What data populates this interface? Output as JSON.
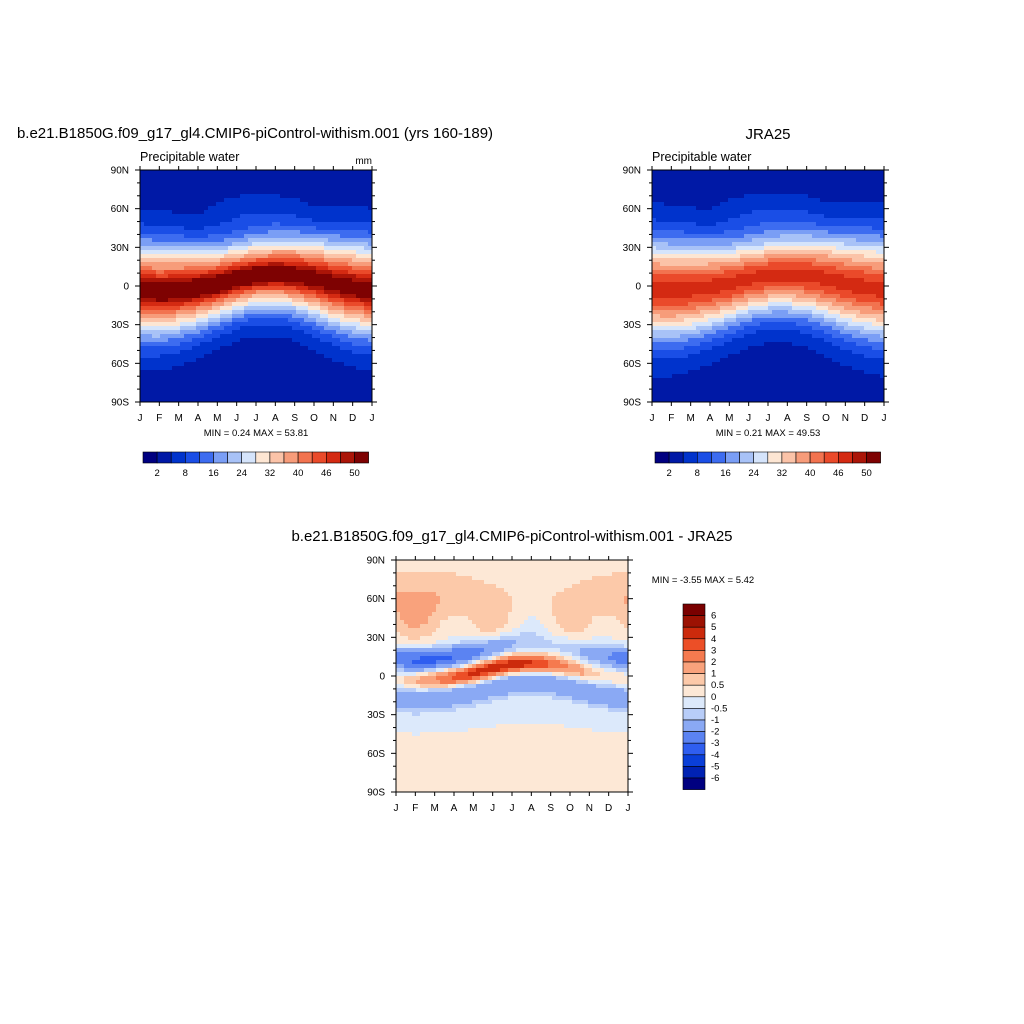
{
  "chart_data": [
    {
      "type": "heatmap",
      "title": "b.e21.B1850G.f09_g17_gl4.CMIP6-piControl-withism.001 (yrs 160-189)",
      "subtitle_left": "Precipitable water",
      "subtitle_right": "mm",
      "x_tick_labels": [
        "J",
        "F",
        "M",
        "A",
        "M",
        "J",
        "J",
        "A",
        "S",
        "O",
        "N",
        "D",
        "J"
      ],
      "y_tick_labels": [
        "90N",
        "60N",
        "30N",
        "0",
        "30S",
        "60S",
        "90S"
      ],
      "ylim": [
        -90,
        90
      ],
      "min_max_text": "MIN =   0.24 MAX =  53.81",
      "min": 0.24,
      "max": 53.81,
      "itcz_peak_lat": {
        "months": [
          "J",
          "F",
          "M",
          "A",
          "M",
          "J",
          "J",
          "A",
          "S",
          "O",
          "N",
          "D",
          "J"
        ],
        "lat": [
          -3,
          -4,
          -3,
          -1,
          2,
          6,
          9,
          10,
          9,
          6,
          2,
          -1,
          -3
        ]
      },
      "colorbar": {
        "labels": [
          "2",
          "8",
          "16",
          "24",
          "32",
          "40",
          "46",
          "50"
        ]
      }
    },
    {
      "type": "heatmap",
      "title": "JRA25",
      "subtitle_left": "Precipitable water",
      "x_tick_labels": [
        "J",
        "F",
        "M",
        "A",
        "M",
        "J",
        "J",
        "A",
        "S",
        "O",
        "N",
        "D",
        "J"
      ],
      "y_tick_labels": [
        "90N",
        "60N",
        "30N",
        "0",
        "30S",
        "60S",
        "90S"
      ],
      "ylim": [
        -90,
        90
      ],
      "min_max_text": "MIN =   0.21 MAX =  49.53",
      "min": 0.21,
      "max": 49.53,
      "colorbar": {
        "labels": [
          "2",
          "8",
          "16",
          "24",
          "32",
          "40",
          "46",
          "50"
        ]
      }
    },
    {
      "type": "heatmap",
      "title": "b.e21.B1850G.f09_g17_gl4.CMIP6-piControl-withism.001 - JRA25",
      "x_tick_labels": [
        "J",
        "F",
        "M",
        "A",
        "M",
        "J",
        "J",
        "A",
        "S",
        "O",
        "N",
        "D",
        "J"
      ],
      "y_tick_labels": [
        "90N",
        "60N",
        "30N",
        "0",
        "30S",
        "60S",
        "90S"
      ],
      "ylim": [
        -90,
        90
      ],
      "min_max_text": "MIN =  -3.55 MAX =   5.42",
      "min": -3.55,
      "max": 5.42,
      "colorbar": {
        "labels": [
          "6",
          "5",
          "4",
          "3",
          "2",
          "1",
          "0.5",
          "0",
          "-0.5",
          "-1",
          "-2",
          "-3",
          "-4",
          "-5",
          "-6"
        ]
      }
    }
  ],
  "colors": {
    "abs_levels": [
      "#000080",
      "#0019a6",
      "#0033cc",
      "#1a4ee6",
      "#3d6cf0",
      "#7a9ef5",
      "#a8c2f7",
      "#d5e4fb",
      "#fde6d3",
      "#fbc3a8",
      "#f79c7a",
      "#f2734f",
      "#ea4a2a",
      "#d42a12",
      "#ab1508",
      "#7e0202"
    ],
    "diff_levels": [
      "#000080",
      "#0022b3",
      "#0a3fd9",
      "#2f5ef0",
      "#5b83f2",
      "#8aa9f4",
      "#b8cdf8",
      "#dce9fb",
      "#fde8d6",
      "#fcc9a9",
      "#f9a27c",
      "#f57a4f",
      "#ec4f27",
      "#cc2a0c",
      "#9c1203",
      "#7a0000"
    ]
  }
}
